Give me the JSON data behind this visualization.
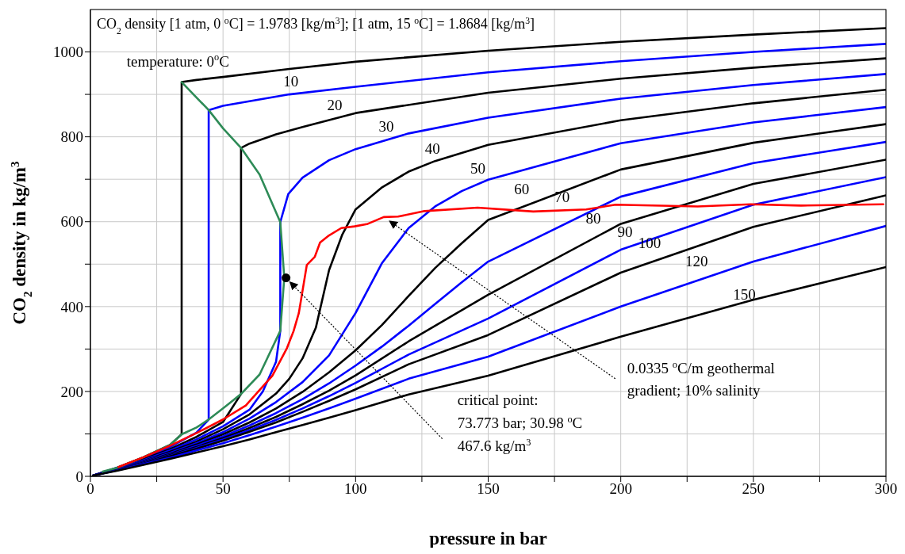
{
  "chart_data": {
    "type": "line",
    "xlabel": "pressure in bar",
    "ylabel": "CO$_{2}$ density in kg/m$^{3}$",
    "xlim": [
      0,
      300
    ],
    "ylim": [
      0,
      1100
    ],
    "xticks": [
      0,
      {
        "value": 25,
        "label": null
      },
      50,
      {
        "value": 75,
        "label": null
      },
      100,
      {
        "value": 125,
        "label": null
      },
      150,
      {
        "value": 175,
        "label": null
      },
      200,
      {
        "value": 225,
        "label": null
      },
      250,
      {
        "value": 275,
        "label": null
      },
      300
    ],
    "yticks": [
      0,
      {
        "value": 100,
        "label": null
      },
      200,
      {
        "value": 300,
        "label": null
      },
      400,
      {
        "value": 500,
        "label": null
      },
      600,
      {
        "value": 700,
        "label": null
      },
      800,
      {
        "value": 900,
        "label": null
      },
      1000
    ],
    "grid": true,
    "line_style": "solid",
    "series": [
      {
        "color": "#000000",
        "x": [
          1,
          10,
          20,
          30,
          34.4,
          34.4,
          40,
          50,
          75,
          100,
          150,
          200,
          250,
          300
        ],
        "values": [
          2,
          20,
          45,
          74,
          99,
          929,
          934,
          941,
          960,
          977,
          1003,
          1024,
          1041,
          1056
        ]
      },
      {
        "color": "#0000ff",
        "x": [
          1,
          10,
          20,
          30,
          40,
          44.6,
          44.6,
          50,
          75,
          100,
          150,
          200,
          250,
          300
        ],
        "values": [
          2,
          20,
          42,
          69,
          103,
          134,
          863,
          873,
          900,
          918,
          952,
          978,
          1000,
          1019
        ]
      },
      {
        "color": "#000000",
        "x": [
          1,
          10,
          20,
          30,
          40,
          50,
          56.8,
          56.8,
          60,
          70,
          80,
          100,
          150,
          200,
          250,
          300
        ],
        "values": [
          2,
          19,
          40,
          64,
          93,
          128,
          194,
          774,
          784,
          806,
          823,
          856,
          904,
          937,
          963,
          985
        ]
      },
      {
        "color": "#0000ff",
        "x": [
          1,
          10,
          20,
          30,
          40,
          50,
          60,
          65,
          70,
          71.6,
          71.6,
          74.6,
          80,
          90,
          100,
          120,
          150,
          200,
          250,
          300
        ],
        "values": [
          2,
          18,
          38,
          61,
          87,
          118,
          157,
          200,
          270,
          343,
          599,
          665,
          704,
          745,
          771,
          808,
          845,
          890,
          922,
          948
        ]
      },
      {
        "color": "#000000",
        "x": [
          1,
          10,
          20,
          30,
          40,
          50,
          60,
          70,
          75,
          80,
          85,
          90,
          95,
          100,
          110,
          120,
          130,
          150,
          200,
          250,
          300
        ],
        "values": [
          2,
          17,
          36,
          58,
          82,
          111,
          146,
          195,
          230,
          278,
          350,
          486,
          570,
          629,
          681,
          718,
          743,
          781,
          839,
          879,
          911
        ]
      },
      {
        "color": "#0000ff",
        "x": [
          1,
          10,
          20,
          30,
          40,
          50,
          60,
          70,
          80,
          90,
          100,
          110,
          120,
          130,
          140,
          150,
          200,
          250,
          300
        ],
        "values": [
          2,
          17,
          35,
          55,
          78,
          104,
          136,
          175,
          222,
          285,
          385,
          503,
          585,
          636,
          672,
          699,
          785,
          834,
          870
        ]
      },
      {
        "color": "#000000",
        "x": [
          1,
          10,
          20,
          30,
          40,
          50,
          60,
          70,
          80,
          90,
          100,
          110,
          120,
          130,
          140,
          150,
          200,
          250,
          300
        ],
        "values": [
          2,
          16,
          34,
          53,
          75,
          99,
          127,
          160,
          199,
          245,
          297,
          357,
          425,
          491,
          549,
          604,
          723,
          786,
          830
        ]
      },
      {
        "color": "#0000ff",
        "x": [
          1,
          10,
          20,
          30,
          40,
          50,
          60,
          70,
          80,
          90,
          100,
          110,
          120,
          130,
          140,
          150,
          200,
          250,
          300
        ],
        "values": [
          2,
          16,
          33,
          51,
          72,
          94,
          120,
          149,
          182,
          219,
          261,
          306,
          355,
          406,
          457,
          506,
          659,
          738,
          788
        ]
      },
      {
        "color": "#000000",
        "x": [
          1,
          10,
          20,
          30,
          40,
          50,
          60,
          70,
          80,
          90,
          100,
          120,
          150,
          200,
          250,
          300
        ],
        "values": [
          2,
          15,
          32,
          50,
          69,
          90,
          114,
          140,
          170,
          202,
          238,
          318,
          428,
          595,
          689,
          746
        ]
      },
      {
        "color": "#0000ff",
        "x": [
          1,
          10,
          20,
          30,
          40,
          50,
          60,
          70,
          80,
          90,
          100,
          120,
          150,
          200,
          250,
          300
        ],
        "values": [
          2,
          15,
          31,
          48,
          67,
          87,
          109,
          133,
          160,
          189,
          220,
          287,
          372,
          534,
          640,
          705
        ]
      },
      {
        "color": "#000000",
        "x": [
          1,
          10,
          20,
          30,
          40,
          50,
          60,
          70,
          80,
          90,
          100,
          120,
          150,
          200,
          250,
          300
        ],
        "values": [
          2,
          15,
          30,
          47,
          65,
          84,
          105,
          127,
          152,
          178,
          205,
          264,
          333,
          480,
          588,
          662
        ]
      },
      {
        "color": "#0000ff",
        "x": [
          1,
          10,
          20,
          30,
          40,
          50,
          60,
          70,
          80,
          90,
          100,
          120,
          150,
          200,
          250,
          300
        ],
        "values": [
          2,
          14,
          29,
          44,
          61,
          78,
          97,
          117,
          138,
          160,
          183,
          230,
          282,
          400,
          506,
          590
        ]
      },
      {
        "color": "#000000",
        "x": [
          1,
          10,
          20,
          30,
          40,
          50,
          60,
          70,
          80,
          90,
          100,
          120,
          150,
          200,
          250,
          300
        ],
        "values": [
          2,
          13,
          27,
          41,
          56,
          71,
          87,
          104,
          121,
          138,
          156,
          193,
          237,
          329,
          416,
          493
        ]
      },
      {
        "color": "#2e8b57",
        "x": [
          4.6,
          10,
          20,
          30,
          34.4,
          40,
          44.6,
          50,
          56.8,
          63.8,
          71.6,
          73.1,
          71.6,
          63.8,
          56.8,
          50,
          44.6,
          34.4
        ],
        "values": [
          11,
          20,
          45,
          74,
          99,
          115,
          134,
          160,
          194,
          240,
          343,
          468,
          599,
          711,
          774,
          820,
          863,
          929
        ]
      },
      {
        "color": "#ff0000",
        "x": [
          10.6,
          20,
          30,
          40,
          50,
          58.6,
          68.6,
          74.1,
          76.6,
          78.6,
          81.6,
          84.6,
          86.6,
          89.6,
          94.6,
          99.6,
          104.6,
          110.6,
          116,
          126,
          146,
          167,
          187,
          198,
          229,
          249,
          268,
          299
        ],
        "values": [
          22,
          45,
          72,
          102,
          134,
          167,
          237,
          302,
          342,
          385,
          498,
          517,
          551,
          566,
          585,
          589,
          595,
          611,
          612,
          625,
          633,
          624,
          629,
          640,
          636,
          641,
          638,
          641
        ]
      },
      {
        "type": "scatter",
        "color": "#000000",
        "x": [
          73.773
        ],
        "values": [
          467.6
        ]
      }
    ],
    "annotations": [
      "CO$_{2}$ density  [1 atm, 0 $^{o}$C]    = 1.9783 [kg/m$^{3}$];   [1 atm, 15 $^{o}$C] = 1.8684 [kg/m$^{3}$]",
      "temperature:  0$^{o}$C",
      "10",
      "20",
      "30",
      "40",
      "50",
      "60",
      "70",
      "80",
      "90",
      "100",
      "120",
      "150",
      "critical point:\n73.773 bar; 30.98 $^{o}$C\n467.6 kg/m$^{3}$",
      {
        "text": "0.0335 $^{o}$C/m geothermal\ngradient; 10% salinity",
        "x": 110.6,
        "y": 611
      }
    ]
  }
}
